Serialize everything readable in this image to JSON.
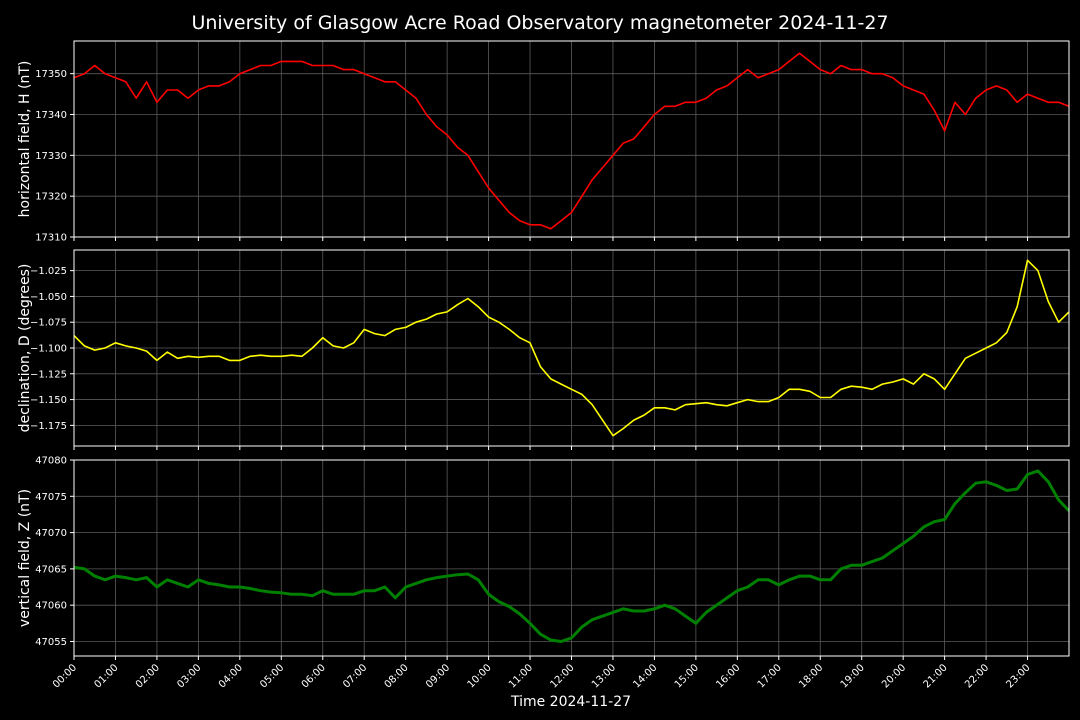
{
  "chart_data": {
    "type": "line",
    "title": "University of Glasgow Acre Road Observatory magnetometer 2024-11-27",
    "xlabel": "Time 2024-11-27",
    "x_tick_labels": [
      "00:00",
      "01:00",
      "02:00",
      "03:00",
      "04:00",
      "05:00",
      "06:00",
      "07:00",
      "08:00",
      "09:00",
      "10:00",
      "11:00",
      "12:00",
      "13:00",
      "14:00",
      "15:00",
      "16:00",
      "17:00",
      "18:00",
      "19:00",
      "20:00",
      "21:00",
      "22:00",
      "23:00"
    ],
    "xlim_hours": [
      0,
      24
    ],
    "grid": true,
    "background": "#000000",
    "panels": [
      {
        "ylabel": "horizontal field, H (nT)",
        "color": "#ff0000",
        "ylim": [
          17310,
          17358
        ],
        "yticks": [
          17310,
          17320,
          17330,
          17340,
          17350
        ],
        "ytick_labels": [
          "17310",
          "17320",
          "17330",
          "17340",
          "17350"
        ],
        "x": [
          0,
          0.25,
          0.5,
          0.75,
          1,
          1.25,
          1.5,
          1.75,
          2,
          2.25,
          2.5,
          2.75,
          3,
          3.25,
          3.5,
          3.75,
          4,
          4.25,
          4.5,
          4.75,
          5,
          5.25,
          5.5,
          5.75,
          6,
          6.25,
          6.5,
          6.75,
          7,
          7.25,
          7.5,
          7.75,
          8,
          8.25,
          8.5,
          8.75,
          9,
          9.25,
          9.5,
          9.75,
          10,
          10.25,
          10.5,
          10.75,
          11,
          11.25,
          11.5,
          11.75,
          12,
          12.25,
          12.5,
          12.75,
          13,
          13.25,
          13.5,
          13.75,
          14,
          14.25,
          14.5,
          14.75,
          15,
          15.25,
          15.5,
          15.75,
          16,
          16.25,
          16.5,
          16.75,
          17,
          17.25,
          17.5,
          17.75,
          18,
          18.25,
          18.5,
          18.75,
          19,
          19.25,
          19.5,
          19.75,
          20,
          20.25,
          20.5,
          20.75,
          21,
          21.25,
          21.5,
          21.75,
          22,
          22.25,
          22.5,
          22.75,
          23,
          23.25,
          23.5,
          23.75,
          24
        ],
        "y": [
          17349,
          17350,
          17352,
          17350,
          17349,
          17348,
          17344,
          17348,
          17343,
          17346,
          17346,
          17344,
          17346,
          17347,
          17347,
          17348,
          17350,
          17351,
          17352,
          17352,
          17353,
          17353,
          17353,
          17352,
          17352,
          17352,
          17351,
          17351,
          17350,
          17349,
          17348,
          17348,
          17346,
          17344,
          17340,
          17337,
          17335,
          17332,
          17330,
          17326,
          17322,
          17319,
          17316,
          17314,
          17313,
          17313,
          17312,
          17314,
          17316,
          17320,
          17324,
          17327,
          17330,
          17333,
          17334,
          17337,
          17340,
          17342,
          17342,
          17343,
          17343,
          17344,
          17346,
          17347,
          17349,
          17351,
          17349,
          17350,
          17351,
          17353,
          17355,
          17353,
          17351,
          17350,
          17352,
          17351,
          17351,
          17350,
          17350,
          17349,
          17347,
          17346,
          17345,
          17341,
          17336,
          17343,
          17340,
          17344,
          17346,
          17347,
          17346,
          17343,
          17345,
          17344,
          17343,
          17343,
          17342
        ]
      },
      {
        "ylabel": "declination, D (degrees)",
        "color": "#ffff00",
        "ylim": [
          -1.195,
          -1.005
        ],
        "yticks": [
          -1.175,
          -1.15,
          -1.125,
          -1.1,
          -1.075,
          -1.05,
          -1.025
        ],
        "ytick_labels": [
          "−1.175",
          "−1.150",
          "−1.125",
          "−1.100",
          "−1.075",
          "−1.050",
          "−1.025"
        ],
        "x": [
          0,
          0.25,
          0.5,
          0.75,
          1,
          1.25,
          1.5,
          1.75,
          2,
          2.25,
          2.5,
          2.75,
          3,
          3.25,
          3.5,
          3.75,
          4,
          4.25,
          4.5,
          4.75,
          5,
          5.25,
          5.5,
          5.75,
          6,
          6.25,
          6.5,
          6.75,
          7,
          7.25,
          7.5,
          7.75,
          8,
          8.25,
          8.5,
          8.75,
          9,
          9.25,
          9.5,
          9.75,
          10,
          10.25,
          10.5,
          10.75,
          11,
          11.25,
          11.5,
          11.75,
          12,
          12.25,
          12.5,
          12.75,
          13,
          13.25,
          13.5,
          13.75,
          14,
          14.25,
          14.5,
          14.75,
          15,
          15.25,
          15.5,
          15.75,
          16,
          16.25,
          16.5,
          16.75,
          17,
          17.25,
          17.5,
          17.75,
          18,
          18.25,
          18.5,
          18.75,
          19,
          19.25,
          19.5,
          19.75,
          20,
          20.25,
          20.5,
          20.75,
          21,
          21.25,
          21.5,
          21.75,
          22,
          22.25,
          22.5,
          22.75,
          23,
          23.25,
          23.5,
          23.75,
          24
        ],
        "y": [
          -1.088,
          -1.098,
          -1.102,
          -1.1,
          -1.095,
          -1.098,
          -1.1,
          -1.103,
          -1.112,
          -1.104,
          -1.11,
          -1.108,
          -1.109,
          -1.108,
          -1.108,
          -1.112,
          -1.112,
          -1.108,
          -1.107,
          -1.108,
          -1.108,
          -1.107,
          -1.108,
          -1.1,
          -1.09,
          -1.098,
          -1.1,
          -1.095,
          -1.082,
          -1.086,
          -1.088,
          -1.082,
          -1.08,
          -1.075,
          -1.072,
          -1.067,
          -1.065,
          -1.058,
          -1.052,
          -1.06,
          -1.07,
          -1.075,
          -1.082,
          -1.09,
          -1.095,
          -1.118,
          -1.13,
          -1.135,
          -1.14,
          -1.145,
          -1.155,
          -1.17,
          -1.185,
          -1.178,
          -1.17,
          -1.165,
          -1.158,
          -1.158,
          -1.16,
          -1.155,
          -1.154,
          -1.153,
          -1.155,
          -1.156,
          -1.153,
          -1.15,
          -1.152,
          -1.152,
          -1.148,
          -1.14,
          -1.14,
          -1.142,
          -1.148,
          -1.148,
          -1.14,
          -1.137,
          -1.138,
          -1.14,
          -1.135,
          -1.133,
          -1.13,
          -1.135,
          -1.125,
          -1.13,
          -1.14,
          -1.125,
          -1.11,
          -1.105,
          -1.1,
          -1.095,
          -1.085,
          -1.06,
          -1.015,
          -1.025,
          -1.055,
          -1.075,
          -1.065
        ]
      },
      {
        "ylabel": "vertical field, Z (nT)",
        "color": "#008000",
        "ylim": [
          47053,
          47080
        ],
        "yticks": [
          47055,
          47060,
          47065,
          47070,
          47075,
          47080
        ],
        "ytick_labels": [
          "47055",
          "47060",
          "47065",
          "47070",
          "47075",
          "47080"
        ],
        "x": [
          0,
          0.25,
          0.5,
          0.75,
          1,
          1.25,
          1.5,
          1.75,
          2,
          2.25,
          2.5,
          2.75,
          3,
          3.25,
          3.5,
          3.75,
          4,
          4.25,
          4.5,
          4.75,
          5,
          5.25,
          5.5,
          5.75,
          6,
          6.25,
          6.5,
          6.75,
          7,
          7.25,
          7.5,
          7.75,
          8,
          8.25,
          8.5,
          8.75,
          9,
          9.25,
          9.5,
          9.75,
          10,
          10.25,
          10.5,
          10.75,
          11,
          11.25,
          11.5,
          11.75,
          12,
          12.25,
          12.5,
          12.75,
          13,
          13.25,
          13.5,
          13.75,
          14,
          14.25,
          14.5,
          14.75,
          15,
          15.25,
          15.5,
          15.75,
          16,
          16.25,
          16.5,
          16.75,
          17,
          17.25,
          17.5,
          17.75,
          18,
          18.25,
          18.5,
          18.75,
          19,
          19.25,
          19.5,
          19.75,
          20,
          20.25,
          20.5,
          20.75,
          21,
          21.25,
          21.5,
          21.75,
          22,
          22.25,
          22.5,
          22.75,
          23,
          23.25,
          23.5,
          23.75,
          24
        ],
        "y": [
          47065.2,
          47065,
          47064,
          47063.5,
          47064,
          47063.8,
          47063.5,
          47063.8,
          47062.5,
          47063.5,
          47063,
          47062.5,
          47063.5,
          47063,
          47062.8,
          47062.5,
          47062.5,
          47062.3,
          47062,
          47061.8,
          47061.7,
          47061.5,
          47061.5,
          47061.3,
          47062,
          47061.5,
          47061.5,
          47061.5,
          47062,
          47062,
          47062.5,
          47061,
          47062.5,
          47063,
          47063.5,
          47063.8,
          47064,
          47064.2,
          47064.3,
          47063.5,
          47061.5,
          47060.5,
          47059.8,
          47058.8,
          47057.5,
          47056,
          47055.2,
          47055,
          47055.5,
          47057,
          47058,
          47058.5,
          47059,
          47059.5,
          47059.2,
          47059.2,
          47059.5,
          47060,
          47059.5,
          47058.5,
          47057.5,
          47059,
          47060,
          47061,
          47062,
          47062.5,
          47063.5,
          47063.5,
          47062.8,
          47063.5,
          47064,
          47064,
          47063.5,
          47063.5,
          47065,
          47065.5,
          47065.5,
          47066,
          47066.5,
          47067.5,
          47068.5,
          47069.5,
          47070.8,
          47071.5,
          47071.8,
          47074,
          47075.5,
          47076.8,
          47077,
          47076.5,
          47075.8,
          47076,
          47078,
          47078.5,
          47077,
          47074.5,
          47073
        ]
      }
    ]
  }
}
